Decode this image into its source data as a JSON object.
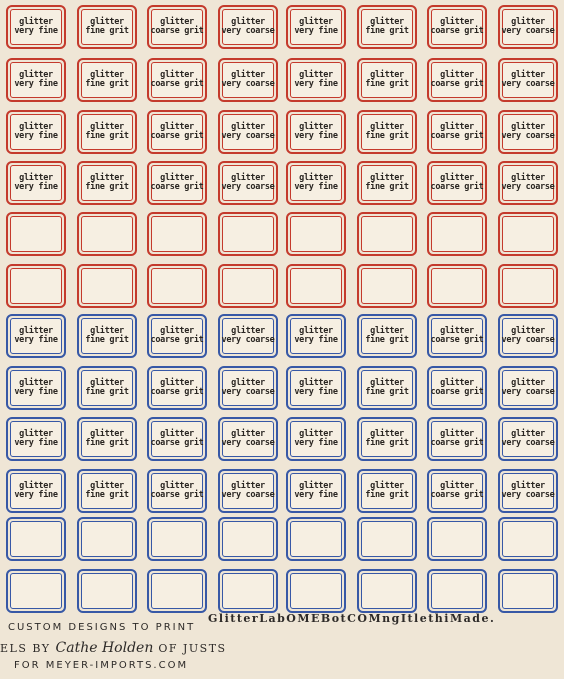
{
  "colors": {
    "red": "#c43a2c",
    "blue": "#3758a6"
  },
  "label_texts": [
    [
      "glitter",
      "very fine"
    ],
    [
      "glitter",
      "fine grit"
    ],
    [
      "glitter",
      "coarse grit"
    ],
    [
      "glitter",
      "very coarse"
    ]
  ],
  "rows": [
    {
      "color": "red",
      "text_pattern": [
        0,
        1,
        2,
        3,
        0,
        1,
        2,
        3
      ]
    },
    {
      "color": "red",
      "text_pattern": [
        0,
        1,
        2,
        3,
        0,
        1,
        2,
        3
      ]
    },
    {
      "color": "red",
      "text_pattern": [
        0,
        1,
        2,
        3,
        0,
        1,
        2,
        3
      ]
    },
    {
      "color": "red",
      "text_pattern": [
        0,
        1,
        2,
        3,
        0,
        1,
        2,
        3
      ]
    },
    {
      "color": "red",
      "text_pattern": null
    },
    {
      "color": "red",
      "text_pattern": null
    },
    {
      "color": "blue",
      "text_pattern": [
        0,
        1,
        2,
        3,
        0,
        1,
        2,
        3
      ]
    },
    {
      "color": "blue",
      "text_pattern": [
        0,
        1,
        2,
        3,
        0,
        1,
        2,
        3
      ]
    },
    {
      "color": "blue",
      "text_pattern": [
        0,
        1,
        2,
        3,
        0,
        1,
        2,
        3
      ]
    },
    {
      "color": "blue",
      "text_pattern": [
        0,
        1,
        2,
        3,
        0,
        1,
        2,
        3
      ]
    },
    {
      "color": "blue",
      "text_pattern": null
    },
    {
      "color": "blue",
      "text_pattern": null
    }
  ],
  "footer": {
    "line1": "CUSTOM DESIGNS TO PRINT",
    "line2_prefix": "ELS BY",
    "signature": "Cathe Holden",
    "line2_suffix": "OF JUSTS",
    "line3": "FOR MEYER-IMPORTS.COM",
    "right_text": "GlitterLabOMEBotCOMngItlethiMade."
  }
}
